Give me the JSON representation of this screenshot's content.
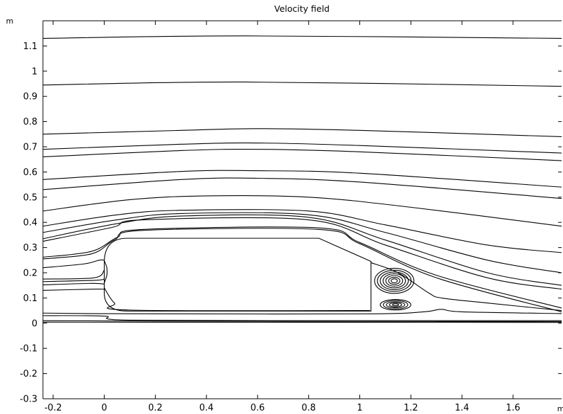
{
  "chart_data": {
    "type": "streamline",
    "title": "Velocity field",
    "xunit": "m",
    "yunit": "m",
    "xlim": [
      -0.24,
      1.79
    ],
    "ylim": [
      -0.3,
      1.2
    ],
    "xticks": [
      -0.2,
      0,
      0.2,
      0.4,
      0.6,
      0.8,
      1,
      1.2,
      1.4,
      1.6
    ],
    "xtick_labels": [
      "-0.2",
      "0",
      "0.2",
      "0.4",
      "0.6",
      "0.8",
      "1",
      "1.2",
      "1.4",
      "1.6"
    ],
    "yticks": [
      -0.3,
      -0.2,
      -0.1,
      0,
      0.1,
      0.2,
      0.3,
      0.4,
      0.5,
      0.6,
      0.7,
      0.8,
      0.9,
      1,
      1.1
    ],
    "ytick_labels": [
      "-0.3",
      "-0.2",
      "-0.1",
      "0",
      "0.1",
      "0.2",
      "0.3",
      "0.4",
      "0.5",
      "0.6",
      "0.7",
      "0.8",
      "0.9",
      "1",
      "1.1"
    ],
    "body_outline": [
      [
        0,
        0.24
      ],
      [
        0.02,
        0.295
      ],
      [
        0.09,
        0.337
      ],
      [
        0.84,
        0.337
      ],
      [
        1.044,
        0.245
      ],
      [
        1.044,
        0.048
      ],
      [
        0.09,
        0.048
      ],
      [
        0.02,
        0.08
      ],
      [
        0,
        0.12
      ]
    ],
    "wake_line": [
      [
        1.044,
        0.245
      ],
      [
        1.044,
        0.048
      ]
    ],
    "streamlines": [
      {
        "points": [
          [
            -0.24,
            1.13
          ],
          [
            0.55,
            1.14
          ],
          [
            1.79,
            1.13
          ]
        ]
      },
      {
        "points": [
          [
            -0.24,
            0.945
          ],
          [
            0.55,
            0.957
          ],
          [
            1.79,
            0.94
          ]
        ]
      },
      {
        "points": [
          [
            -0.24,
            0.75
          ],
          [
            0.3,
            0.765
          ],
          [
            0.6,
            0.772
          ],
          [
            1.0,
            0.765
          ],
          [
            1.79,
            0.74
          ]
        ]
      },
      {
        "points": [
          [
            -0.24,
            0.69
          ],
          [
            0.3,
            0.71
          ],
          [
            0.6,
            0.715
          ],
          [
            1.0,
            0.705
          ],
          [
            1.79,
            0.675
          ]
        ]
      },
      {
        "points": [
          [
            -0.24,
            0.66
          ],
          [
            0.3,
            0.685
          ],
          [
            0.6,
            0.69
          ],
          [
            1.0,
            0.68
          ],
          [
            1.79,
            0.645
          ]
        ]
      },
      {
        "points": [
          [
            -0.24,
            0.57
          ],
          [
            0.3,
            0.602
          ],
          [
            0.6,
            0.605
          ],
          [
            1.0,
            0.595
          ],
          [
            1.79,
            0.54
          ]
        ]
      },
      {
        "points": [
          [
            -0.24,
            0.53
          ],
          [
            0.3,
            0.57
          ],
          [
            0.6,
            0.575
          ],
          [
            1.0,
            0.56
          ],
          [
            1.79,
            0.495
          ]
        ]
      },
      {
        "points": [
          [
            -0.24,
            0.445
          ],
          [
            0.1,
            0.49
          ],
          [
            0.4,
            0.505
          ],
          [
            0.8,
            0.5
          ],
          [
            1.2,
            0.46
          ],
          [
            1.79,
            0.385
          ]
        ]
      },
      {
        "points": [
          [
            -0.24,
            0.385
          ],
          [
            0.05,
            0.43
          ],
          [
            0.3,
            0.448
          ],
          [
            0.8,
            0.445
          ],
          [
            1.1,
            0.39
          ],
          [
            1.5,
            0.31
          ],
          [
            1.79,
            0.28
          ]
        ]
      },
      {
        "points": [
          [
            -0.24,
            0.36
          ],
          [
            0.05,
            0.41
          ],
          [
            0.3,
            0.435
          ],
          [
            0.8,
            0.43
          ],
          [
            1.1,
            0.36
          ],
          [
            1.5,
            0.25
          ],
          [
            1.79,
            0.2
          ]
        ]
      },
      {
        "points": [
          [
            -0.24,
            0.335
          ],
          [
            0.05,
            0.395
          ],
          [
            0.3,
            0.425
          ],
          [
            0.8,
            0.42
          ],
          [
            1.1,
            0.33
          ],
          [
            1.5,
            0.2
          ],
          [
            1.79,
            0.15
          ]
        ]
      },
      {
        "points": [
          [
            -0.24,
            0.325
          ],
          [
            0.03,
            0.38
          ],
          [
            0.15,
            0.41
          ],
          [
            0.8,
            0.41
          ],
          [
            1.1,
            0.31
          ],
          [
            1.5,
            0.18
          ],
          [
            1.79,
            0.135
          ]
        ]
      },
      {
        "points": [
          [
            -0.24,
            0.262
          ],
          [
            -0.05,
            0.285
          ],
          [
            0.05,
            0.34
          ],
          [
            0.15,
            0.372
          ],
          [
            0.84,
            0.378
          ],
          [
            1.0,
            0.32
          ],
          [
            1.3,
            0.19
          ],
          [
            1.79,
            0.06
          ]
        ]
      },
      {
        "points": [
          [
            -0.24,
            0.255
          ],
          [
            -0.05,
            0.275
          ],
          [
            0.04,
            0.33
          ],
          [
            0.15,
            0.368
          ],
          [
            0.84,
            0.372
          ],
          [
            1.0,
            0.315
          ],
          [
            1.3,
            0.18
          ],
          [
            1.79,
            0.045
          ]
        ]
      },
      {
        "points": [
          [
            -0.24,
            0.22
          ],
          [
            -0.08,
            0.235
          ],
          [
            -0.02,
            0.25
          ],
          [
            0.0,
            0.25
          ]
        ]
      },
      {
        "points": [
          [
            -0.24,
            0.175
          ],
          [
            -0.04,
            0.18
          ],
          [
            0.0,
            0.21
          ]
        ]
      },
      {
        "points": [
          [
            -0.24,
            0.165
          ],
          [
            -0.04,
            0.17
          ],
          [
            0.0,
            0.175
          ]
        ]
      },
      {
        "points": [
          [
            -0.24,
            0.152
          ],
          [
            -0.05,
            0.158
          ],
          [
            0.0,
            0.155
          ]
        ]
      },
      {
        "points": [
          [
            -0.24,
            0.13
          ],
          [
            -0.05,
            0.135
          ],
          [
            0.0,
            0.135
          ]
        ]
      },
      {
        "points": [
          [
            0.0,
            0.14
          ],
          [
            0.04,
            0.08
          ],
          [
            0.1,
            0.052
          ],
          [
            1.04,
            0.05
          ]
        ]
      },
      {
        "points": [
          [
            -0.24,
            0.04
          ],
          [
            -0.05,
            0.038
          ],
          [
            0.3,
            0.037
          ],
          [
            1.05,
            0.037
          ],
          [
            1.25,
            0.045
          ],
          [
            1.32,
            0.055
          ],
          [
            1.4,
            0.045
          ],
          [
            1.79,
            0.038
          ]
        ]
      },
      {
        "points": [
          [
            -0.24,
            0.03
          ],
          [
            0.0,
            0.028
          ],
          [
            0.1,
            0.012
          ],
          [
            1.0,
            0.01
          ],
          [
            1.79,
            0.01
          ]
        ]
      },
      {
        "points": [
          [
            -0.24,
            0.01
          ],
          [
            0.2,
            0.008
          ],
          [
            1.0,
            0.007
          ],
          [
            1.79,
            0.006
          ]
        ]
      },
      {
        "points": [
          [
            -0.24,
            0.004
          ],
          [
            1.79,
            0.003
          ]
        ]
      },
      {
        "points": [
          [
            1.044,
            0.24
          ],
          [
            1.15,
            0.2
          ],
          [
            1.27,
            0.12
          ],
          [
            1.32,
            0.1
          ],
          [
            1.5,
            0.08
          ],
          [
            1.79,
            0.05
          ]
        ]
      },
      {
        "points": [
          [
            0.0,
            0.248
          ],
          [
            0.01,
            0.22
          ],
          [
            0.01,
            0.19
          ],
          [
            0.0,
            0.16
          ]
        ]
      }
    ],
    "vortices": [
      {
        "center": [
          1.135,
          0.168
        ],
        "rx": [
          0.012,
          0.022,
          0.033,
          0.044,
          0.055,
          0.066,
          0.077
        ],
        "ry": [
          0.008,
          0.014,
          0.021,
          0.028,
          0.035,
          0.042,
          0.05
        ]
      },
      {
        "center": [
          1.14,
          0.073
        ],
        "rx": [
          0.012,
          0.024,
          0.036,
          0.048,
          0.06
        ],
        "ry": [
          0.004,
          0.008,
          0.012,
          0.017,
          0.021
        ]
      }
    ]
  }
}
